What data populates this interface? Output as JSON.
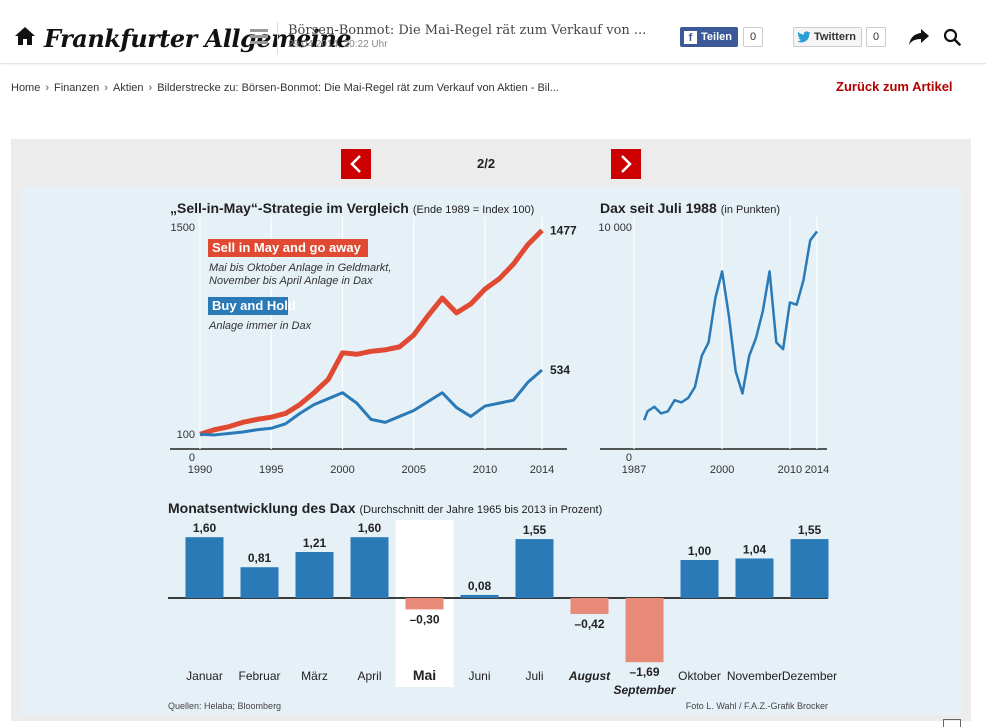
{
  "header": {
    "logo": "Frankfurter Allgemeine",
    "article_title": "Börsen-Bonmot: Die Mai-Regel rät zum Verkauf von ...",
    "date": "29.04.2014, 20:22 Uhr",
    "facebook_label": "Teilen",
    "facebook_count": "0",
    "twitter_label": "Twittern",
    "twitter_count": "0"
  },
  "breadcrumb": [
    "Home",
    "Finanzen",
    "Aktien",
    "Bilderstrecke zu: Börsen-Bonmot: Die Mai-Regel rät zum Verkauf von Aktien - Bil..."
  ],
  "back_link": "Zurück zum Artikel",
  "gallery": {
    "counter": "2/2"
  },
  "colors": {
    "accent": "#cc0000",
    "sell_in_may": "#e04a33",
    "buy_and_hold": "#2a7ab8",
    "negative_bar": "#e88a78"
  },
  "chart_data": [
    {
      "type": "line",
      "title": "„Sell-in-May“-Strategie im Vergleich",
      "subtitle": "(Ende 1989 = Index 100)",
      "x_ticks": [
        "1990",
        "1995",
        "2000",
        "2005",
        "2010",
        "2014"
      ],
      "y_ticks": [
        "0",
        "100",
        "1500"
      ],
      "series": [
        {
          "name": "Sell in May and go away",
          "description": [
            "Mai bis Oktober Anlage in Geldmarkt,",
            "November bis April Anlage in Dax"
          ],
          "end_label": "1477",
          "x": [
            1990,
            1991,
            1992,
            1993,
            1994,
            1995,
            1996,
            1997,
            1998,
            1999,
            2000,
            2001,
            2002,
            2003,
            2004,
            2005,
            2006,
            2007,
            2008,
            2009,
            2010,
            2011,
            2012,
            2013,
            2014
          ],
          "values": [
            100,
            130,
            150,
            180,
            200,
            215,
            240,
            300,
            380,
            470,
            650,
            640,
            660,
            670,
            690,
            770,
            900,
            1020,
            920,
            980,
            1080,
            1150,
            1250,
            1380,
            1477
          ]
        },
        {
          "name": "Buy and Hold",
          "description": [
            "Anlage immer in Dax"
          ],
          "end_label": "534",
          "x": [
            1990,
            1991,
            1992,
            1993,
            1994,
            1995,
            1996,
            1997,
            1998,
            1999,
            2000,
            2001,
            2002,
            2003,
            2004,
            2005,
            2006,
            2007,
            2008,
            2009,
            2010,
            2011,
            2012,
            2013,
            2014
          ],
          "values": [
            100,
            95,
            105,
            115,
            130,
            140,
            170,
            240,
            300,
            340,
            380,
            310,
            200,
            180,
            220,
            260,
            320,
            380,
            280,
            220,
            290,
            310,
            330,
            450,
            534
          ]
        }
      ]
    },
    {
      "type": "line",
      "title": "Dax seit Juli 1988",
      "subtitle": "(in Punkten)",
      "x_ticks": [
        "1987",
        "2000",
        "2010",
        "2014"
      ],
      "y_ticks": [
        "0",
        "10 000"
      ],
      "series": [
        {
          "x": [
            1988.5,
            1989,
            1990,
            1991,
            1992,
            1993,
            1994,
            1995,
            1996,
            1997,
            1998,
            1999,
            2000,
            2001,
            2002,
            2003,
            2004,
            2005,
            2006,
            2007,
            2008,
            2009,
            2010,
            2011,
            2012,
            2013,
            2014
          ],
          "values": [
            1300,
            1700,
            1900,
            1600,
            1700,
            2200,
            2100,
            2300,
            2800,
            4200,
            4800,
            6800,
            8000,
            6000,
            3500,
            2500,
            4200,
            5000,
            6200,
            8000,
            4800,
            4500,
            6600,
            6500,
            7600,
            9400,
            9800
          ]
        }
      ]
    },
    {
      "type": "bar",
      "title": "Monatsentwicklung des Dax",
      "subtitle": "(Durchschnitt der Jahre 1965 bis 2013 in Prozent)",
      "categories": [
        "Januar",
        "Februar",
        "März",
        "April",
        "Mai",
        "Juni",
        "Juli",
        "August",
        "September",
        "Oktober",
        "November",
        "Dezember"
      ],
      "values": [
        1.6,
        0.81,
        1.21,
        1.6,
        -0.3,
        0.08,
        1.55,
        -0.42,
        -1.69,
        1.0,
        1.04,
        1.55
      ],
      "labels": [
        "1,60",
        "0,81",
        "1,21",
        "1,60",
        "–0,30",
        "0,08",
        "1,55",
        "–0,42",
        "–1,69",
        "1,00",
        "1,04",
        "1,55"
      ],
      "highlight": "Mai"
    }
  ],
  "sources": "Quellen: Helaba; Bloomberg",
  "credit": "Foto L. Wahl / F.A.Z.-Grafik Brocker"
}
